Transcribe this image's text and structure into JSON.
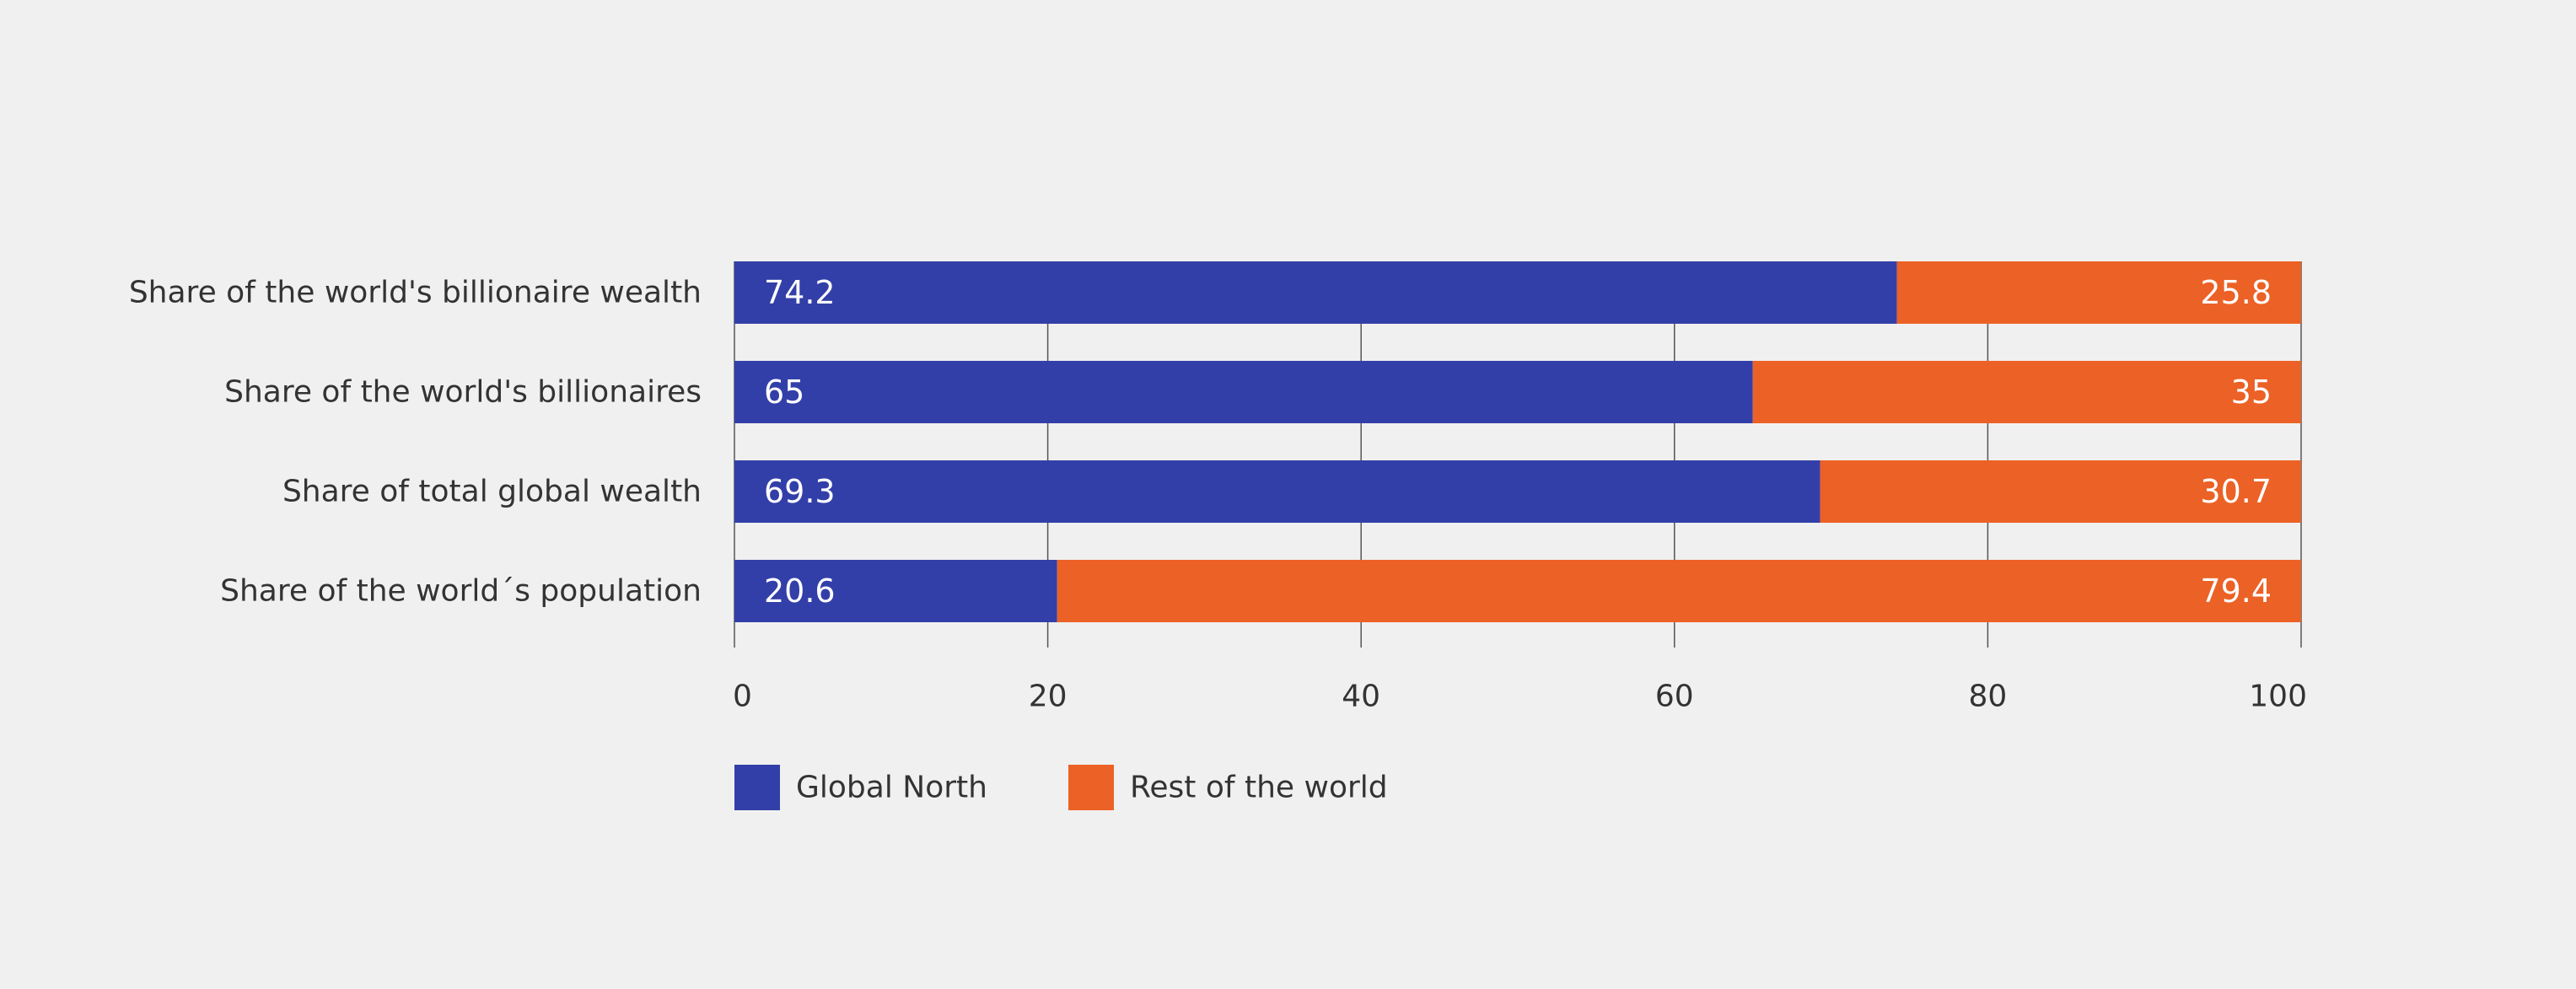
{
  "chart_data": {
    "type": "bar",
    "orientation": "horizontal",
    "stacked": true,
    "categories": [
      "Share of the world's billionaire wealth",
      "Share of the world's billionaires",
      "Share of total global wealth",
      "Share of the world´s population"
    ],
    "series": [
      {
        "name": "Global North",
        "values": [
          74.2,
          65,
          69.3,
          20.6
        ],
        "color": "#333fa8"
      },
      {
        "name": "Rest of the world",
        "values": [
          25.8,
          35,
          30.7,
          79.4
        ],
        "color": "#ec6125"
      }
    ],
    "xlim": [
      0,
      100
    ],
    "xticks": [
      0,
      20,
      40,
      60,
      80,
      100
    ],
    "grid": true,
    "legend_position": "bottom-left",
    "title": "",
    "xlabel": "",
    "ylabel": ""
  }
}
